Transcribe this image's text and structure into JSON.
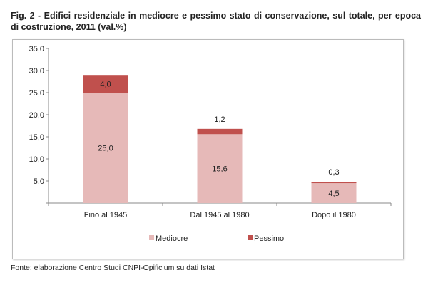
{
  "title": "Fig. 2 - Edifici residenziale in mediocre e pessimo stato di conservazione, sul totale, per epoca di costruzione, 2011 (val.%)",
  "source": "Fonte: elaborazione Centro Studi CNPI-Opificium su dati Istat",
  "chart_data": {
    "type": "bar",
    "stacked": true,
    "categories": [
      "Fino al 1945",
      "Dal 1945 al 1980",
      "Dopo il 1980"
    ],
    "series": [
      {
        "name": "Mediocre",
        "values": [
          25.0,
          15.6,
          4.5
        ],
        "labels": [
          "25,0",
          "15,6",
          "4,5"
        ],
        "color": "#e6b9b8"
      },
      {
        "name": "Pessimo",
        "values": [
          4.0,
          1.2,
          0.3
        ],
        "labels": [
          "4,0",
          "1,2",
          "0,3"
        ],
        "color": "#c0504d"
      }
    ],
    "ylim": [
      0,
      35
    ],
    "yticks": [
      "5,0",
      "10,0",
      "15,0",
      "20,0",
      "25,0",
      "30,0",
      "35,0"
    ],
    "grid": false,
    "legend": "bottom"
  }
}
